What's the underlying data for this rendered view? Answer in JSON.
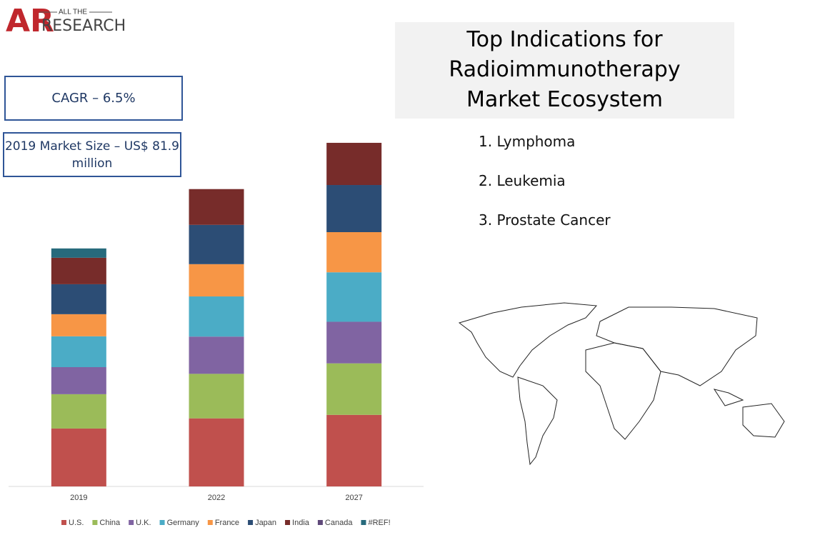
{
  "header": {
    "logo_mark": "AR",
    "logo_top": "ALL THE",
    "logo_main": "RESEARCH"
  },
  "cagr": "CAGR – 6.5%",
  "market_size": "2019 Market Size – US$ 81.9 million",
  "title": "Top Indications for Radioimmunotherapy Market Ecosystem",
  "indications": [
    "1. Lymphoma",
    "2. Leukemia",
    "3. Prostate Cancer"
  ],
  "chart_data": {
    "type": "stacked_bar",
    "categories": [
      "2019",
      "2022",
      "2027"
    ],
    "ylim": [
      0,
      123
    ],
    "series": [
      {
        "name": "U.S.",
        "color": "#c0504d",
        "values": [
          19.9,
          23.4,
          24.6
        ]
      },
      {
        "name": "China",
        "color": "#9bbb59",
        "values": [
          11.8,
          15.3,
          17.7
        ]
      },
      {
        "name": "U.K.",
        "color": "#8064a2",
        "values": [
          9.3,
          12.8,
          14.3
        ]
      },
      {
        "name": "Germany",
        "color": "#4bacc6",
        "values": [
          10.6,
          13.8,
          17.0
        ]
      },
      {
        "name": "France",
        "color": "#f79646",
        "values": [
          7.6,
          11.1,
          13.8
        ]
      },
      {
        "name": "Japan",
        "color": "#2c4d75",
        "values": [
          10.3,
          13.5,
          16.2
        ]
      },
      {
        "name": "India",
        "color": "#772c2a",
        "values": [
          9.1,
          12.3,
          14.5
        ]
      },
      {
        "name": "Canada",
        "color": "#5f497a",
        "values": [
          0,
          0,
          0
        ]
      },
      {
        "name": "#REF!",
        "color": "#276a7c",
        "values": [
          3.2,
          0,
          0
        ]
      }
    ]
  }
}
